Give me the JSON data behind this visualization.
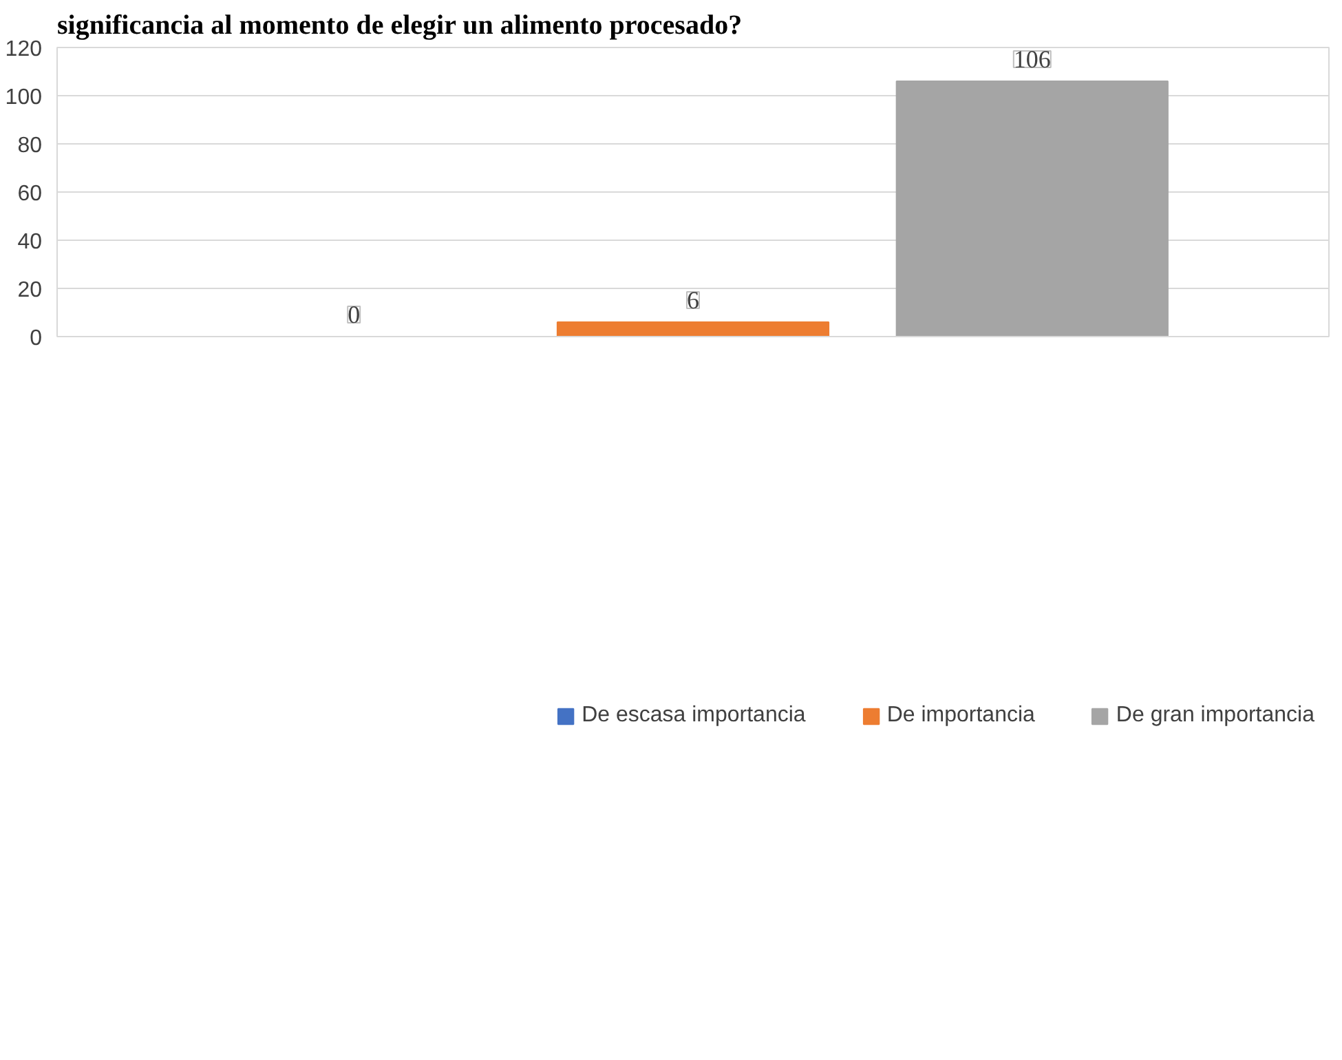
{
  "chart_data": {
    "type": "bar",
    "title": "significancia al momento de elegir un alimento procesado?",
    "categories": [
      null
    ],
    "series": [
      {
        "name": "De escasa importancia",
        "color": "#4472c4",
        "values": [
          0
        ]
      },
      {
        "name": "De importancia",
        "color": "#ed7d31",
        "values": [
          6
        ]
      },
      {
        "name": "De gran importancia",
        "color": "#a5a5a5",
        "values": [
          106
        ]
      }
    ],
    "ylim": [
      0,
      120
    ],
    "yticks": [
      0,
      20,
      40,
      60,
      80,
      100,
      120
    ],
    "grid": "y",
    "legend": "bottom",
    "data_labels": true
  }
}
